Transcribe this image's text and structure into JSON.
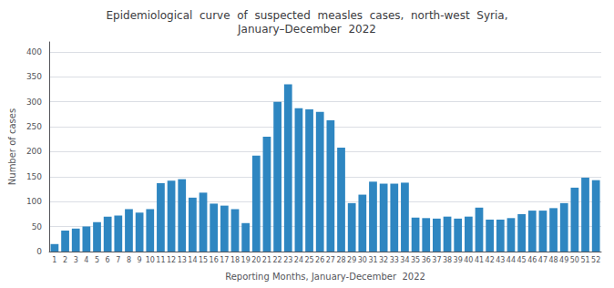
{
  "chart_data": {
    "type": "bar",
    "title": "Epidemiological  curve  of  suspected  measles  cases,  north-west  Syria,\nJanuary–December  2022",
    "x_label": "Reporting Months, January-December  2022",
    "y_label": "Number of cases",
    "categories": [
      "1",
      "2",
      "3",
      "4",
      "5",
      "6",
      "7",
      "8",
      "9",
      "10",
      "11",
      "12",
      "13",
      "14",
      "15",
      "16",
      "17",
      "18",
      "19",
      "20",
      "21",
      "22",
      "23",
      "24",
      "25",
      "26",
      "27",
      "28",
      "29",
      "30",
      "31",
      "32",
      "33",
      "34",
      "35",
      "36",
      "37",
      "38",
      "39",
      "40",
      "41",
      "42",
      "43",
      "44",
      "45",
      "46",
      "47",
      "48",
      "49",
      "50",
      "51",
      "52"
    ],
    "values": [
      15,
      42,
      46,
      50,
      59,
      70,
      72,
      85,
      78,
      85,
      137,
      142,
      145,
      108,
      118,
      96,
      92,
      85,
      57,
      192,
      230,
      300,
      335,
      287,
      285,
      280,
      263,
      208,
      97,
      114,
      140,
      136,
      136,
      138,
      68,
      67,
      66,
      70,
      66,
      70,
      88,
      64,
      64,
      67,
      75,
      82,
      82,
      87,
      97,
      128,
      148,
      143
    ],
    "color": "#2E86C1",
    "ylim": [
      0,
      420
    ],
    "yticks": [
      0,
      50,
      100,
      150,
      200,
      250,
      300,
      350,
      400
    ],
    "grid": true
  }
}
